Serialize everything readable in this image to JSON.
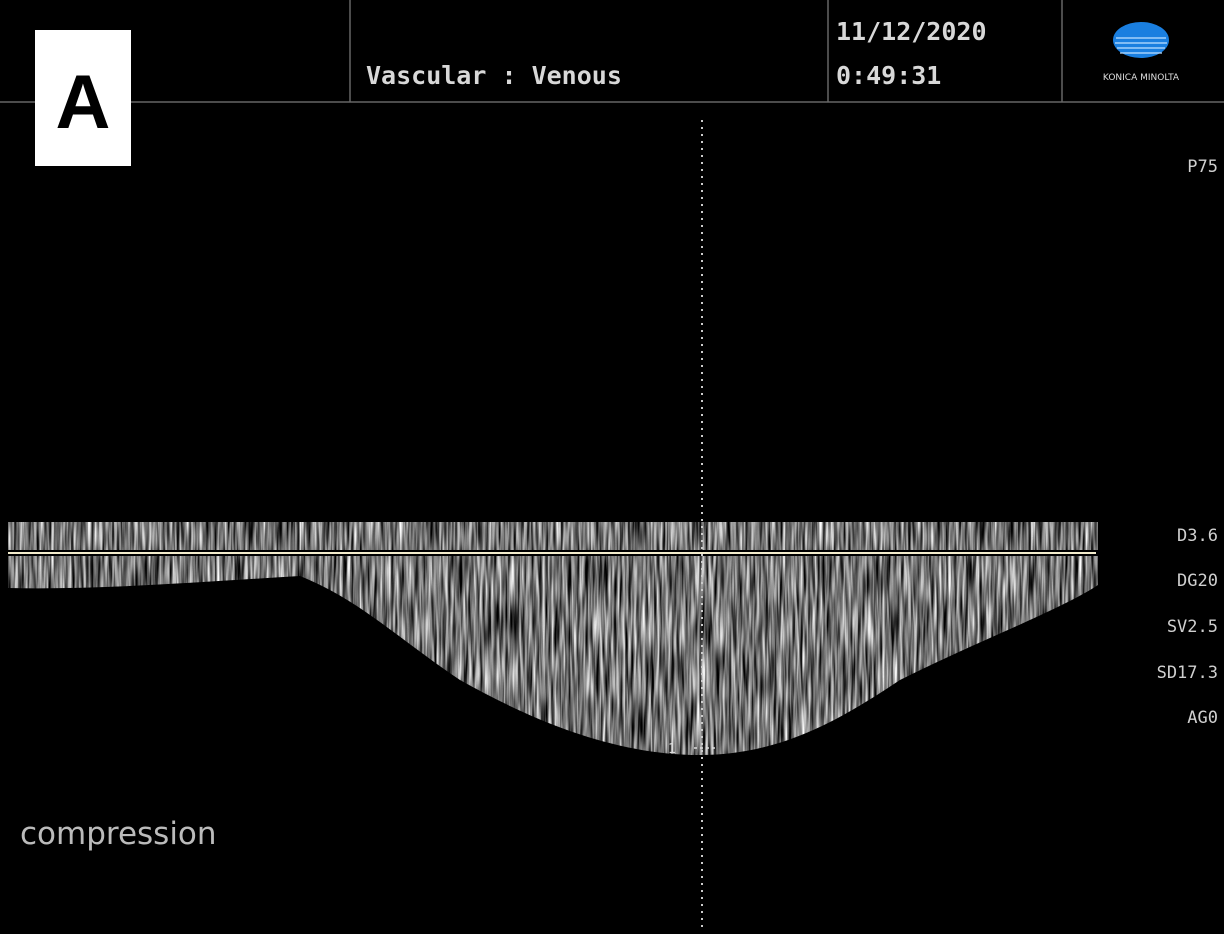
{
  "panel_label": "A",
  "header": {
    "mode": "Vascular : Venous",
    "date": "11/12/2020",
    "time": "0:49:31",
    "brand": "KONICA MINOLTA"
  },
  "parameters": [
    "P75",
    "D3.6",
    "DG20",
    "SV2.5",
    "SD17.3",
    "AG0"
  ],
  "cursor_label": "1",
  "annotation": "compression"
}
